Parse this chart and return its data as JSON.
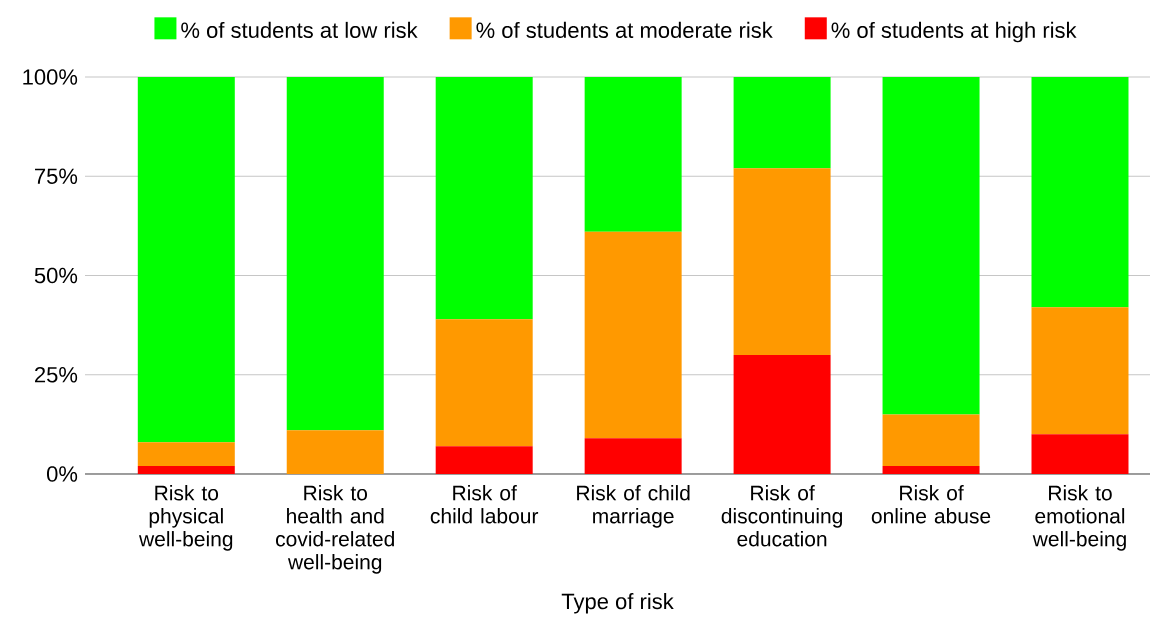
{
  "chart_data": {
    "type": "bar",
    "stacked": true,
    "xlabel": "Type of risk",
    "categories": [
      "Risk to physical well-being",
      "Risk to health and covid-related well-being",
      "Risk of child labour",
      "Risk of child marriage",
      "Risk of discontinuing education",
      "Risk of online abuse",
      "Risk to emotional well-being"
    ],
    "series": [
      {
        "name": "% of students at high risk",
        "color": "#ff0000",
        "values": [
          2,
          0,
          7,
          9,
          30,
          2,
          10
        ]
      },
      {
        "name": "% of students at moderate risk",
        "color": "#ff9900",
        "values": [
          6,
          11,
          32,
          52,
          47,
          13,
          32
        ]
      },
      {
        "name": "% of students at low risk",
        "color": "#00ff00",
        "values": [
          92,
          89,
          61,
          39,
          23,
          85,
          58
        ]
      }
    ],
    "ylim": [
      0,
      100
    ],
    "yticks": [
      {
        "value": 0,
        "label": "0%"
      },
      {
        "value": 25,
        "label": "25%"
      },
      {
        "value": 50,
        "label": "50%"
      },
      {
        "value": 75,
        "label": "75%"
      },
      {
        "value": 100,
        "label": "100%"
      }
    ],
    "grid": "y",
    "legend": "top"
  }
}
